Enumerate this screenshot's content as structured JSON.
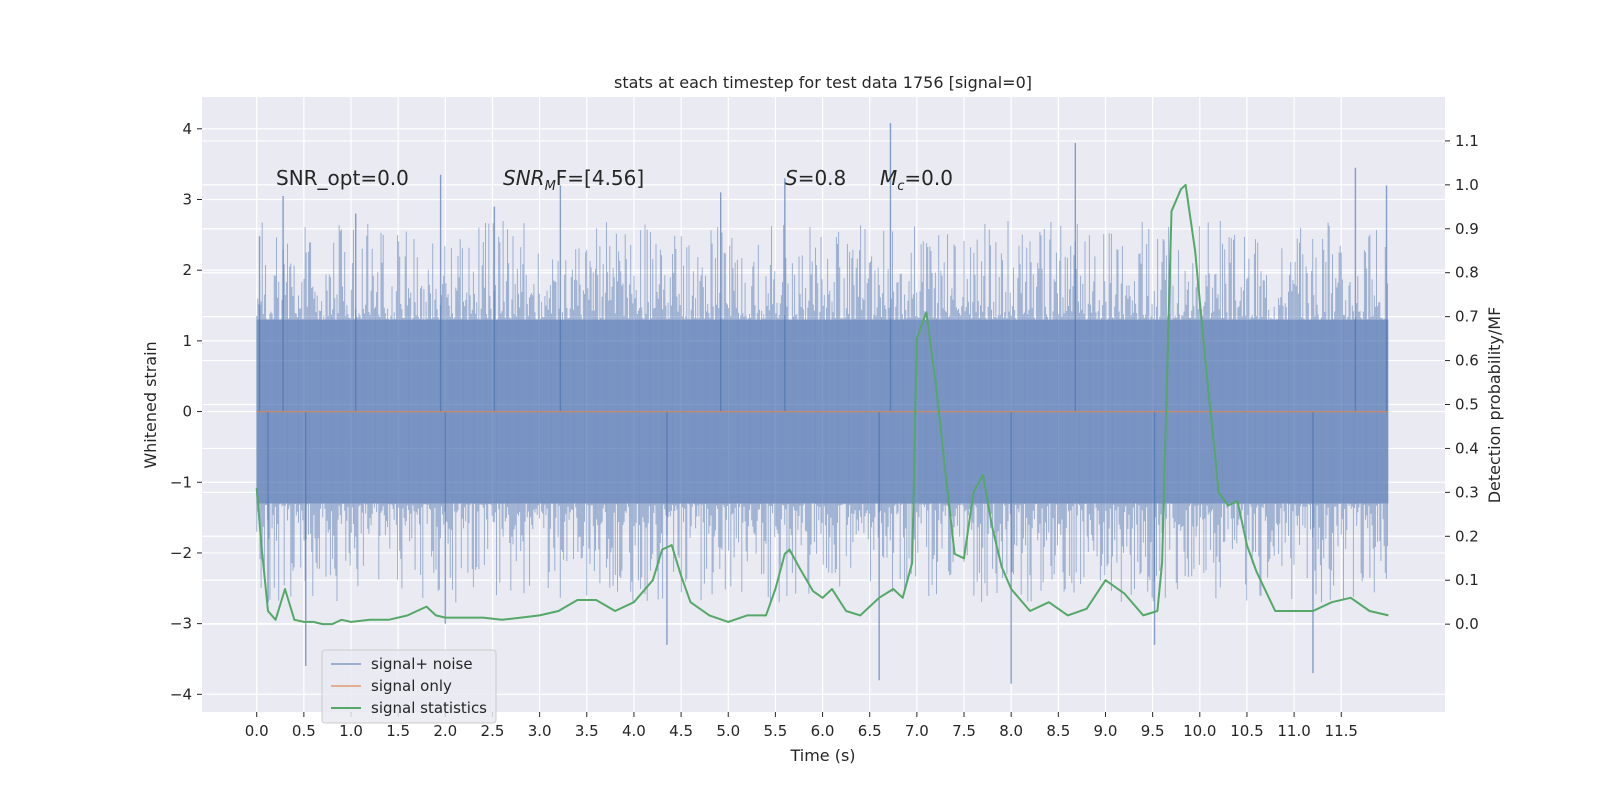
{
  "chart_data": {
    "type": "line",
    "title": "stats at each timestep for test data 1756 [signal=0]",
    "xlabel": "Time (s)",
    "ylabel_left": "Whitened strain",
    "ylabel_right": "Detection probability/MF",
    "xlim": [
      -0.58,
      12.6
    ],
    "ylim_left": [
      -4.25,
      4.45
    ],
    "ylim_right": [
      -0.2,
      1.2
    ],
    "x_ticks": [
      0.0,
      0.5,
      1.0,
      1.5,
      2.0,
      2.5,
      3.0,
      3.5,
      4.0,
      4.5,
      5.0,
      5.5,
      6.0,
      6.5,
      7.0,
      7.5,
      8.0,
      8.5,
      9.0,
      9.5,
      10.0,
      10.5,
      11.0,
      11.5
    ],
    "x_tick_labels": [
      "0.0",
      "0.5",
      "1.0",
      "1.5",
      "2.0",
      "2.5",
      "3.0",
      "3.5",
      "4.0",
      "4.5",
      "5.0",
      "5.5",
      "6.0",
      "6.5",
      "7.0",
      "7.5",
      "8.0",
      "8.5",
      "9.0",
      "9.5",
      "10.0",
      "10.5",
      "11.0",
      "11.5"
    ],
    "y_left_ticks": [
      -4,
      -3,
      -2,
      -1,
      0,
      1,
      2,
      3,
      4
    ],
    "y_left_tick_labels": [
      "−4",
      "−3",
      "−2",
      "−1",
      "0",
      "1",
      "2",
      "3",
      "4"
    ],
    "y_right_ticks": [
      0.0,
      0.1,
      0.2,
      0.3,
      0.4,
      0.5,
      0.6,
      0.7,
      0.8,
      0.9,
      1.0,
      1.1
    ],
    "y_right_tick_labels": [
      "0.0",
      "0.1",
      "0.2",
      "0.3",
      "0.4",
      "0.5",
      "0.6",
      "0.7",
      "0.8",
      "0.9",
      "1.0",
      "1.1"
    ],
    "grid": true,
    "legend_position": "lower-left",
    "series": [
      {
        "name": "signal+ noise",
        "axis": "left",
        "color": "#4c72b0",
        "opacity": 0.5,
        "style": "dense noise",
        "x_range": [
          0.0,
          12.0
        ],
        "body_amplitude": 1.3,
        "peak_values": [
          {
            "x": 0.03,
            "y": 2.48
          },
          {
            "x": 0.12,
            "y": -2.7
          },
          {
            "x": 0.28,
            "y": 3.05
          },
          {
            "x": 0.52,
            "y": -3.6
          },
          {
            "x": 1.05,
            "y": 2.8
          },
          {
            "x": 1.95,
            "y": 3.35
          },
          {
            "x": 2.0,
            "y": -3.0
          },
          {
            "x": 2.52,
            "y": 2.9
          },
          {
            "x": 3.22,
            "y": 3.2
          },
          {
            "x": 4.35,
            "y": -3.3
          },
          {
            "x": 4.92,
            "y": 3.1
          },
          {
            "x": 5.6,
            "y": 3.3
          },
          {
            "x": 6.6,
            "y": -3.8
          },
          {
            "x": 6.72,
            "y": 4.08
          },
          {
            "x": 8.0,
            "y": -3.85
          },
          {
            "x": 8.68,
            "y": 3.8
          },
          {
            "x": 9.52,
            "y": -3.3
          },
          {
            "x": 11.2,
            "y": -3.7
          },
          {
            "x": 11.65,
            "y": 3.45
          },
          {
            "x": 11.98,
            "y": 3.2
          }
        ]
      },
      {
        "name": "signal only",
        "axis": "left",
        "color": "#dd8452",
        "x": [
          0.0,
          12.0
        ],
        "y": [
          0.0,
          0.0
        ]
      },
      {
        "name": "signal statistics",
        "axis": "right",
        "color": "#55a868",
        "x": [
          0.0,
          0.05,
          0.12,
          0.2,
          0.3,
          0.4,
          0.5,
          0.6,
          0.7,
          0.8,
          0.9,
          1.0,
          1.2,
          1.4,
          1.6,
          1.7,
          1.8,
          1.9,
          2.0,
          2.2,
          2.4,
          2.6,
          2.8,
          3.0,
          3.2,
          3.4,
          3.6,
          3.8,
          4.0,
          4.2,
          4.3,
          4.4,
          4.5,
          4.6,
          4.8,
          5.0,
          5.2,
          5.4,
          5.5,
          5.6,
          5.65,
          5.75,
          5.9,
          6.0,
          6.1,
          6.25,
          6.4,
          6.6,
          6.75,
          6.85,
          6.95,
          7.0,
          7.1,
          7.2,
          7.3,
          7.4,
          7.5,
          7.6,
          7.7,
          7.8,
          7.9,
          8.0,
          8.2,
          8.4,
          8.6,
          8.8,
          9.0,
          9.2,
          9.4,
          9.55,
          9.6,
          9.7,
          9.8,
          9.85,
          9.95,
          10.05,
          10.2,
          10.3,
          10.4,
          10.5,
          10.6,
          10.8,
          11.0,
          11.2,
          11.4,
          11.6,
          11.8,
          12.0
        ],
        "y": [
          0.31,
          0.18,
          0.03,
          0.01,
          0.08,
          0.01,
          0.005,
          0.005,
          0.0,
          0.0,
          0.01,
          0.005,
          0.01,
          0.01,
          0.02,
          0.03,
          0.04,
          0.02,
          0.015,
          0.015,
          0.015,
          0.01,
          0.015,
          0.02,
          0.03,
          0.055,
          0.055,
          0.03,
          0.05,
          0.1,
          0.17,
          0.18,
          0.11,
          0.05,
          0.02,
          0.005,
          0.02,
          0.02,
          0.08,
          0.16,
          0.17,
          0.13,
          0.075,
          0.06,
          0.08,
          0.03,
          0.02,
          0.06,
          0.08,
          0.06,
          0.14,
          0.65,
          0.71,
          0.55,
          0.35,
          0.16,
          0.15,
          0.3,
          0.34,
          0.22,
          0.13,
          0.08,
          0.03,
          0.05,
          0.02,
          0.035,
          0.1,
          0.07,
          0.02,
          0.03,
          0.14,
          0.94,
          0.99,
          1.0,
          0.85,
          0.62,
          0.3,
          0.27,
          0.28,
          0.18,
          0.12,
          0.03,
          0.03,
          0.03,
          0.05,
          0.06,
          0.03,
          0.02
        ]
      }
    ],
    "annotations": [
      {
        "text": "SNR_opt=0.0",
        "x": 0.2,
        "y": 3.3
      },
      {
        "text_main": "SNR",
        "text_sub": "M",
        "text_tail": "F=[4.56]",
        "x": 2.6,
        "y": 3.3
      },
      {
        "text_main": "S",
        "text_tail": "=0.8",
        "x": 5.6,
        "y": 3.3
      },
      {
        "text_main": "M",
        "text_sub": "c",
        "text_tail": "=0.0",
        "x": 6.6,
        "y": 3.3
      }
    ]
  }
}
